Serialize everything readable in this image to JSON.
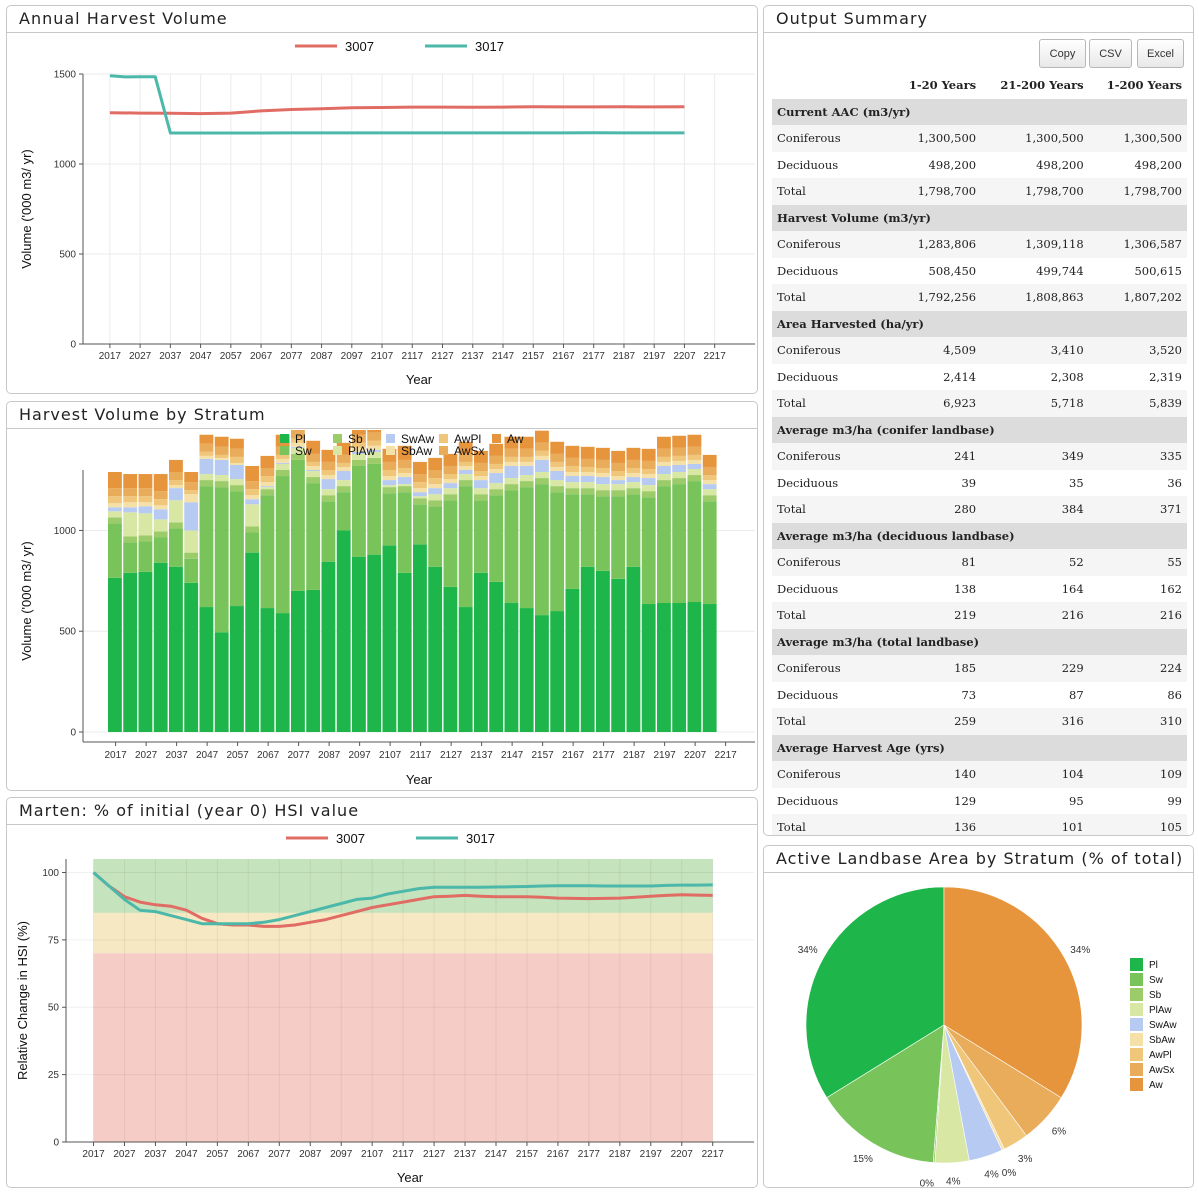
{
  "panels": {
    "annual_harvest": {
      "title": "Annual Harvest Volume"
    },
    "stratum_volume": {
      "title": "Harvest Volume by Stratum"
    },
    "marten": {
      "title": "Marten: % of initial (year 0) HSI value"
    },
    "summary": {
      "title": "Output Summary"
    },
    "landbase": {
      "title": "Active Landbase Area by Stratum (% of total)"
    }
  },
  "summary": {
    "buttons": {
      "copy": "Copy",
      "csv": "CSV",
      "excel": "Excel"
    },
    "columns": [
      "",
      "1-20 Years",
      "21-200 Years",
      "1-200 Years"
    ],
    "sections": [
      {
        "title": "Current AAC (m3/yr)",
        "rows": [
          [
            "Coniferous",
            "1,300,500",
            "1,300,500",
            "1,300,500"
          ],
          [
            "Deciduous",
            "498,200",
            "498,200",
            "498,200"
          ],
          [
            "Total",
            "1,798,700",
            "1,798,700",
            "1,798,700"
          ]
        ]
      },
      {
        "title": "Harvest Volume (m3/yr)",
        "rows": [
          [
            "Coniferous",
            "1,283,806",
            "1,309,118",
            "1,306,587"
          ],
          [
            "Deciduous",
            "508,450",
            "499,744",
            "500,615"
          ],
          [
            "Total",
            "1,792,256",
            "1,808,863",
            "1,807,202"
          ]
        ]
      },
      {
        "title": "Area Harvested (ha/yr)",
        "rows": [
          [
            "Coniferous",
            "4,509",
            "3,410",
            "3,520"
          ],
          [
            "Deciduous",
            "2,414",
            "2,308",
            "2,319"
          ],
          [
            "Total",
            "6,923",
            "5,718",
            "5,839"
          ]
        ]
      },
      {
        "title": "Average m3/ha (conifer landbase)",
        "rows": [
          [
            "Coniferous",
            "241",
            "349",
            "335"
          ],
          [
            "Deciduous",
            "39",
            "35",
            "36"
          ],
          [
            "Total",
            "280",
            "384",
            "371"
          ]
        ]
      },
      {
        "title": "Average m3/ha (deciduous landbase)",
        "rows": [
          [
            "Coniferous",
            "81",
            "52",
            "55"
          ],
          [
            "Deciduous",
            "138",
            "164",
            "162"
          ],
          [
            "Total",
            "219",
            "216",
            "216"
          ]
        ]
      },
      {
        "title": "Average m3/ha (total landbase)",
        "rows": [
          [
            "Coniferous",
            "185",
            "229",
            "224"
          ],
          [
            "Deciduous",
            "73",
            "87",
            "86"
          ],
          [
            "Total",
            "259",
            "316",
            "310"
          ]
        ]
      },
      {
        "title": "Average Harvest Age (yrs)",
        "rows": [
          [
            "Coniferous",
            "140",
            "104",
            "109"
          ],
          [
            "Deciduous",
            "129",
            "95",
            "99"
          ],
          [
            "Total",
            "136",
            "101",
            "105"
          ]
        ]
      }
    ]
  },
  "colors": {
    "s3007": "#e06c64",
    "s3017": "#4bb8a9",
    "strata": {
      "Pl": "#1eb64a",
      "Sw": "#78c45b",
      "Sb": "#9ccc6a",
      "PlAw": "#d8e8a4",
      "SwAw": "#b7caf2",
      "SbAw": "#f5e1a7",
      "AwPl": "#efc67a",
      "AwSx": "#e9ac5a",
      "Aw": "#e7953d"
    },
    "bands": {
      "good": "#c5e3bd",
      "fair": "#f6e8c3",
      "poor": "#f6ccc6"
    }
  },
  "chart_data": [
    {
      "type": "line",
      "title": "Annual Harvest Volume",
      "xlabel": "Year",
      "ylabel": "Volume ('000 m3/ yr)",
      "xlim": [
        2017,
        2217
      ],
      "ylim": [
        0,
        1500
      ],
      "yticks": [
        0,
        500,
        1000,
        1500
      ],
      "xticks": [
        2017,
        2027,
        2037,
        2047,
        2057,
        2067,
        2077,
        2087,
        2097,
        2107,
        2117,
        2127,
        2137,
        2147,
        2157,
        2167,
        2177,
        2187,
        2197,
        2207,
        2217
      ],
      "legend": "top",
      "grid": true,
      "series": [
        {
          "name": "3007",
          "x": [
            2017,
            2027,
            2037,
            2047,
            2057,
            2067,
            2077,
            2087,
            2097,
            2107,
            2117,
            2127,
            2137,
            2147,
            2157,
            2167,
            2177,
            2187,
            2197,
            2207
          ],
          "y": [
            1285,
            1283,
            1282,
            1280,
            1283,
            1295,
            1303,
            1307,
            1313,
            1314,
            1316,
            1316,
            1315,
            1316,
            1318,
            1317,
            1317,
            1318,
            1317,
            1318
          ]
        },
        {
          "name": "3017",
          "x": [
            2017,
            2022,
            2027,
            2032,
            2037,
            2047,
            2057,
            2067,
            2077,
            2087,
            2097,
            2107,
            2117,
            2127,
            2137,
            2147,
            2157,
            2167,
            2177,
            2187,
            2197,
            2207
          ],
          "y": [
            1490,
            1484,
            1485,
            1485,
            1172,
            1172,
            1172,
            1172,
            1173,
            1173,
            1173,
            1173,
            1173,
            1173,
            1173,
            1173,
            1173,
            1173,
            1174,
            1173,
            1173,
            1173
          ]
        }
      ]
    },
    {
      "type": "bar",
      "stacked": true,
      "title": "Harvest Volume by Stratum",
      "xlabel": "Year",
      "ylabel": "Volume ('000 m3/ yr)",
      "ylim": [
        0,
        1300
      ],
      "yticks": [
        0,
        500,
        1000
      ],
      "xticks": [
        2017,
        2027,
        2037,
        2047,
        2057,
        2067,
        2077,
        2087,
        2097,
        2107,
        2117,
        2127,
        2137,
        2147,
        2157,
        2167,
        2177,
        2187,
        2197,
        2207,
        2217
      ],
      "legend": "top",
      "start_year": 2017,
      "step": 5,
      "strata": [
        "Pl",
        "Sw",
        "Sb",
        "PlAw",
        "SwAw",
        "SbAw",
        "AwPl",
        "AwSx",
        "Aw"
      ],
      "legend_order": [
        "Pl",
        "Sb",
        "SwAw",
        "AwPl",
        "Aw",
        "Sw",
        "PlAw",
        "SbAw",
        "AwSx"
      ],
      "Pl": [
        765,
        790,
        795,
        840,
        820,
        740,
        620,
        495,
        625,
        890,
        615,
        590,
        700,
        705,
        845,
        1000,
        870,
        880,
        925,
        790,
        930,
        820,
        720,
        620,
        790,
        745,
        640,
        615,
        580,
        600,
        710,
        820,
        800,
        760,
        820,
        635,
        640,
        640,
        645,
        635
      ],
      "Sw": [
        270,
        150,
        150,
        125,
        190,
        120,
        600,
        720,
        570,
        100,
        560,
        680,
        650,
        530,
        300,
        190,
        450,
        450,
        260,
        400,
        200,
        300,
        430,
        600,
        360,
        430,
        560,
        600,
        650,
        590,
        470,
        360,
        370,
        410,
        360,
        530,
        580,
        590,
        600,
        510
      ],
      "Sb": [
        30,
        30,
        30,
        30,
        30,
        30,
        30,
        30,
        30,
        30,
        30,
        30,
        30,
        30,
        30,
        30,
        30,
        30,
        30,
        30,
        30,
        30,
        30,
        30,
        30,
        30,
        30,
        30,
        30,
        30,
        30,
        30,
        30,
        30,
        30,
        30,
        30,
        30,
        30,
        30
      ],
      "PlAw": [
        30,
        120,
        110,
        60,
        110,
        110,
        30,
        30,
        30,
        110,
        10,
        30,
        30,
        30,
        30,
        30,
        30,
        30,
        10,
        10,
        10,
        30,
        30,
        30,
        30,
        30,
        30,
        30,
        30,
        30,
        30,
        30,
        30,
        30,
        30,
        30,
        30,
        30,
        30,
        30
      ],
      "SwAw": [
        20,
        25,
        35,
        50,
        60,
        140,
        75,
        75,
        70,
        25,
        5,
        5,
        5,
        5,
        50,
        45,
        10,
        10,
        25,
        35,
        20,
        30,
        25,
        20,
        40,
        50,
        60,
        45,
        60,
        45,
        30,
        30,
        35,
        20,
        25,
        35,
        40,
        35,
        25,
        25
      ],
      "SbAw": [
        20,
        25,
        20,
        20,
        15,
        40,
        15,
        10,
        10,
        20,
        20,
        20,
        20,
        20,
        20,
        20,
        20,
        20,
        20,
        20,
        20,
        20,
        20,
        20,
        20,
        20,
        20,
        20,
        20,
        20,
        20,
        20,
        20,
        20,
        20,
        20,
        20,
        20,
        20,
        20
      ],
      "AwPl": [
        35,
        30,
        30,
        30,
        25,
        20,
        20,
        15,
        30,
        30,
        30,
        20,
        20,
        20,
        25,
        20,
        25,
        25,
        30,
        25,
        30,
        30,
        25,
        20,
        25,
        25,
        25,
        25,
        25,
        25,
        30,
        25,
        25,
        25,
        25,
        25,
        25,
        25,
        25,
        25
      ],
      "AwSx": [
        40,
        40,
        40,
        40,
        40,
        40,
        40,
        40,
        40,
        40,
        40,
        40,
        40,
        40,
        40,
        40,
        40,
        40,
        40,
        40,
        40,
        40,
        40,
        40,
        40,
        40,
        40,
        40,
        40,
        40,
        40,
        40,
        40,
        40,
        40,
        40,
        40,
        40,
        40,
        40
      ],
      "Aw": [
        80,
        70,
        70,
        85,
        60,
        50,
        45,
        50,
        50,
        75,
        60,
        60,
        60,
        65,
        60,
        60,
        60,
        60,
        65,
        70,
        60,
        60,
        60,
        60,
        60,
        60,
        60,
        60,
        60,
        60,
        60,
        60,
        60,
        60,
        60,
        60,
        60,
        60,
        60,
        60
      ]
    },
    {
      "type": "line",
      "title": "Marten: % of initial (year 0) HSI value",
      "xlabel": "Year",
      "ylabel": "Relative Change in HSI (%)",
      "xlim": [
        2017,
        2217
      ],
      "ylim": [
        0,
        105
      ],
      "yticks": [
        0,
        25,
        50,
        75,
        100
      ],
      "xticks": [
        2017,
        2027,
        2037,
        2047,
        2057,
        2067,
        2077,
        2087,
        2097,
        2107,
        2117,
        2127,
        2137,
        2147,
        2157,
        2167,
        2177,
        2187,
        2197,
        2207,
        2217
      ],
      "legend": "top",
      "bands": [
        {
          "from": 85,
          "to": 105,
          "level": "good"
        },
        {
          "from": 70,
          "to": 85,
          "level": "fair"
        },
        {
          "from": 0,
          "to": 70,
          "level": "poor"
        }
      ],
      "series": [
        {
          "name": "3007",
          "x": [
            2017,
            2022,
            2027,
            2032,
            2037,
            2042,
            2047,
            2052,
            2057,
            2062,
            2067,
            2072,
            2077,
            2082,
            2087,
            2092,
            2097,
            2102,
            2107,
            2112,
            2117,
            2122,
            2127,
            2132,
            2137,
            2142,
            2147,
            2152,
            2157,
            2162,
            2167,
            2172,
            2177,
            2182,
            2187,
            2192,
            2197,
            2202,
            2207,
            2212,
            2217
          ],
          "y": [
            100,
            95,
            91,
            89,
            88,
            87.5,
            86,
            83,
            81,
            80.5,
            80.5,
            80,
            80,
            80.5,
            81.5,
            82.5,
            84,
            85.5,
            87,
            88,
            89,
            90,
            91,
            91.2,
            91.5,
            91.2,
            91,
            91,
            91,
            90.8,
            90.5,
            90.4,
            90.3,
            90.4,
            90.5,
            90.8,
            91.2,
            91.5,
            91.7,
            91.6,
            91.5
          ]
        },
        {
          "name": "3017",
          "x": [
            2017,
            2022,
            2027,
            2032,
            2037,
            2042,
            2047,
            2052,
            2057,
            2062,
            2067,
            2072,
            2077,
            2082,
            2087,
            2092,
            2097,
            2102,
            2107,
            2112,
            2117,
            2122,
            2127,
            2132,
            2137,
            2142,
            2147,
            2152,
            2157,
            2162,
            2167,
            2172,
            2177,
            2182,
            2187,
            2192,
            2197,
            2202,
            2207,
            2212,
            2217
          ],
          "y": [
            100,
            95,
            90,
            86,
            85.5,
            84,
            82.5,
            81,
            81,
            81,
            81,
            81.5,
            82.5,
            84,
            85.5,
            87,
            88.5,
            90,
            90.5,
            92,
            93,
            94,
            94.5,
            94.5,
            94.5,
            94.5,
            94.6,
            94.7,
            94.8,
            95,
            95.1,
            95.1,
            95.1,
            95,
            95,
            95,
            95,
            95.2,
            95.3,
            95.3,
            95.4
          ]
        }
      ]
    },
    {
      "type": "pie",
      "title": "Active Landbase Area by Stratum (% of total)",
      "legend": "right",
      "slices": [
        {
          "label": "Pl",
          "value": 34,
          "text": "34%"
        },
        {
          "label": "Sw",
          "value": 15,
          "text": "15%"
        },
        {
          "label": "Sb",
          "value": 0.2,
          "text": "0%"
        },
        {
          "label": "PlAw",
          "value": 4,
          "text": "4%"
        },
        {
          "label": "SwAw",
          "value": 4,
          "text": "4%"
        },
        {
          "label": "SbAw",
          "value": 0.3,
          "text": "0%"
        },
        {
          "label": "AwPl",
          "value": 3,
          "text": "3%"
        },
        {
          "label": "AwSx",
          "value": 6,
          "text": "6%"
        },
        {
          "label": "Aw",
          "value": 34,
          "text": "34%"
        }
      ]
    }
  ]
}
